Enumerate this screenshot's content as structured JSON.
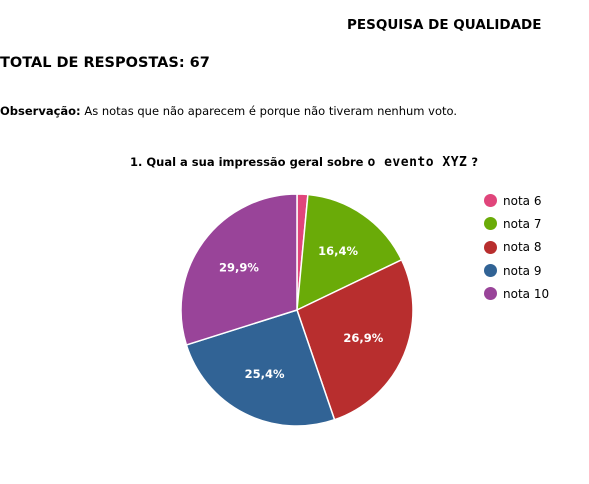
{
  "header": {
    "title": "PESQUISA DE QUALIDADE"
  },
  "summary": {
    "total_label": "TOTAL DE RESPOSTAS: 67"
  },
  "note": {
    "label": "Observação:",
    "text": "As notas que não aparecem é porque não tiveram nenhum voto."
  },
  "chart_data": {
    "type": "pie",
    "title_prefix": "1. Qual a sua impressão geral sobre ",
    "title_event": "o evento XYZ",
    "title_suffix": " ?",
    "legend_position": "right",
    "slices": [
      {
        "label": "nota 6",
        "value": 1.5,
        "color": "#e0457b",
        "data_label": ""
      },
      {
        "label": "nota 7",
        "value": 16.4,
        "color": "#6aab08",
        "data_label": "16,4%"
      },
      {
        "label": "nota 8",
        "value": 26.9,
        "color": "#b82e2e",
        "data_label": "26,9%"
      },
      {
        "label": "nota 9",
        "value": 25.4,
        "color": "#316395",
        "data_label": "25,4%"
      },
      {
        "label": "nota 10",
        "value": 29.9,
        "color": "#994499",
        "data_label": "29,9%"
      }
    ]
  }
}
